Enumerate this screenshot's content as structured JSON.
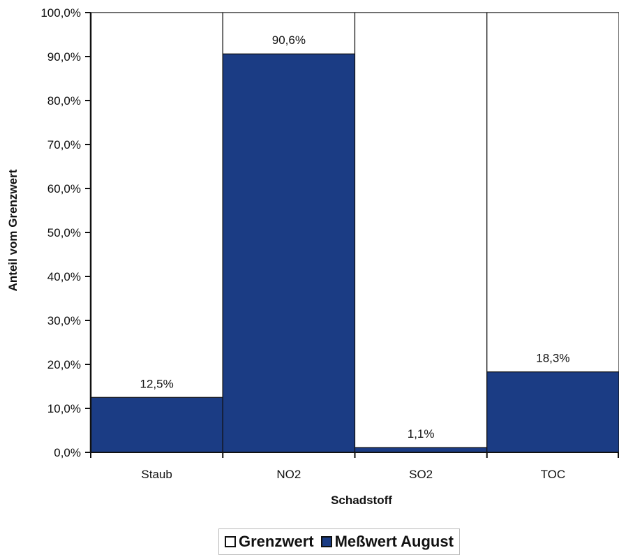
{
  "chart_data": {
    "type": "bar",
    "title": "",
    "xlabel": "Schadstoff",
    "ylabel": "Anteil vom Grenzwert",
    "ylim": [
      0,
      100
    ],
    "yticks": [
      "0,0%",
      "10,0%",
      "20,0%",
      "30,0%",
      "40,0%",
      "50,0%",
      "60,0%",
      "70,0%",
      "80,0%",
      "90,0%",
      "100,0%"
    ],
    "categories": [
      "Staub",
      "NO2",
      "SO2",
      "TOC"
    ],
    "series": [
      {
        "name": "Grenzwert",
        "values": [
          100,
          100,
          100,
          100
        ],
        "color": "#ffffff"
      },
      {
        "name": "Meßwert August",
        "values": [
          12.5,
          90.6,
          1.1,
          18.3
        ],
        "color": "#1b3c84"
      }
    ],
    "data_labels": [
      "12,5%",
      "90,6%",
      "1,1%",
      "18,3%"
    ],
    "legend_position": "bottom",
    "grid": false
  }
}
